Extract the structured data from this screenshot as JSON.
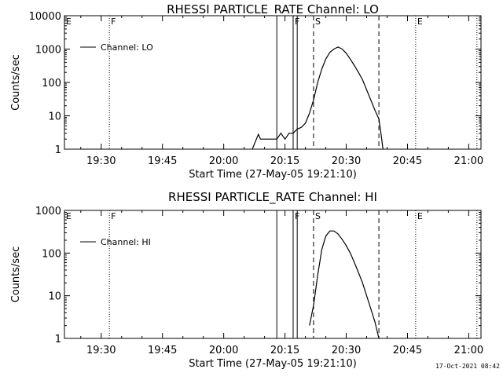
{
  "chart_data": [
    {
      "type": "line",
      "title": "RHESSI PARTICLE_RATE Channel: LO",
      "xlabel": "Start Time (27-May-05 19:21:10)",
      "ylabel": "Counts/sec",
      "scale": "log",
      "ylim": [
        1,
        10000
      ],
      "y_ticks": [
        "1",
        "10",
        "100",
        "1000",
        "10000"
      ],
      "x_ticks": [
        "19:30",
        "19:45",
        "20:00",
        "20:15",
        "20:30",
        "20:45",
        "21:00"
      ],
      "legend": "Channel: LO",
      "legend_position": "upper-left",
      "markers": [
        {
          "label": "E",
          "time": "19:21",
          "style": "dotted"
        },
        {
          "label": "F",
          "time": "19:32",
          "style": "dotted"
        },
        {
          "label": "",
          "time": "20:13",
          "style": "solid"
        },
        {
          "label": "F",
          "time": "20:17",
          "style": "solid"
        },
        {
          "label": "",
          "time": "20:18",
          "style": "solid"
        },
        {
          "label": "S",
          "time": "20:22",
          "style": "dashed"
        },
        {
          "label": "",
          "time": "20:38",
          "style": "dashed"
        },
        {
          "label": "E",
          "time": "20:47",
          "style": "dotted"
        },
        {
          "label": "",
          "time": "21:02",
          "style": "dotted"
        }
      ],
      "series": [
        {
          "name": "Channel: LO",
          "x": [
            "20:07",
            "20:08",
            "20:08:30",
            "20:09",
            "20:09:30",
            "20:10",
            "20:11",
            "20:12",
            "20:13",
            "20:14",
            "20:15",
            "20:16",
            "20:17",
            "20:18",
            "20:19",
            "20:20",
            "20:21",
            "20:22",
            "20:23",
            "20:24",
            "20:25",
            "20:26",
            "20:27",
            "20:28",
            "20:29",
            "20:30",
            "20:31",
            "20:32",
            "20:33",
            "20:34",
            "20:35",
            "20:36",
            "20:37",
            "20:38",
            "20:38:30",
            "20:39"
          ],
          "values": [
            1,
            2,
            2.8,
            2,
            2,
            2,
            2,
            2,
            2,
            3,
            2,
            3,
            3,
            4,
            4.5,
            6,
            12,
            30,
            100,
            250,
            500,
            800,
            1000,
            1150,
            1000,
            750,
            500,
            320,
            200,
            120,
            60,
            30,
            15,
            8,
            3,
            1
          ]
        }
      ]
    },
    {
      "type": "line",
      "title": "RHESSI PARTICLE_RATE Channel: HI",
      "xlabel": "Start Time (27-May-05 19:21:10)",
      "ylabel": "Counts/sec",
      "scale": "log",
      "ylim": [
        1,
        1000
      ],
      "y_ticks": [
        "1",
        "10",
        "100",
        "1000"
      ],
      "x_ticks": [
        "19:30",
        "19:45",
        "20:00",
        "20:15",
        "20:30",
        "20:45",
        "21:00"
      ],
      "legend": "Channel: HI",
      "legend_position": "upper-left",
      "markers": [
        {
          "label": "E",
          "time": "19:21",
          "style": "dotted"
        },
        {
          "label": "F",
          "time": "19:32",
          "style": "dotted"
        },
        {
          "label": "",
          "time": "20:13",
          "style": "solid"
        },
        {
          "label": "F",
          "time": "20:17",
          "style": "solid"
        },
        {
          "label": "",
          "time": "20:18",
          "style": "solid"
        },
        {
          "label": "S",
          "time": "20:22",
          "style": "dashed"
        },
        {
          "label": "",
          "time": "20:38",
          "style": "dashed"
        },
        {
          "label": "E",
          "time": "20:47",
          "style": "dotted"
        },
        {
          "label": "",
          "time": "21:02",
          "style": "dotted"
        }
      ],
      "series": [
        {
          "name": "Channel: HI",
          "x": [
            "20:21",
            "20:22",
            "20:23",
            "20:24",
            "20:25",
            "20:26",
            "20:27",
            "20:28",
            "20:29",
            "20:30",
            "20:31",
            "20:32",
            "20:33",
            "20:34",
            "20:35",
            "20:36",
            "20:37",
            "20:38"
          ],
          "values": [
            2,
            6,
            30,
            120,
            250,
            330,
            330,
            280,
            210,
            150,
            100,
            60,
            35,
            20,
            10,
            5,
            2.5,
            1
          ]
        }
      ]
    }
  ],
  "footer": "17-Oct-2021 08:42"
}
